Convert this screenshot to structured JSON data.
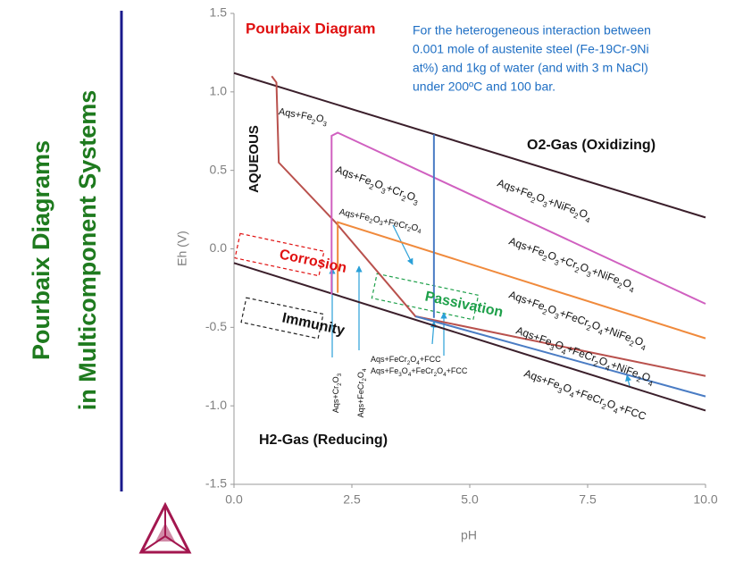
{
  "slide": {
    "title_lines": [
      "Pourbaix Diagrams",
      "in Multicomponent Systems"
    ]
  },
  "chart_data": {
    "type": "line",
    "title": "Pourbaix Diagram",
    "description": [
      "For the heterogeneous interaction between",
      "0.001 mole of  austenite steel (Fe-19Cr-9Ni",
      "at%) and 1kg of water (and with 3 m NaCl)",
      "under 200ºC and 100 bar."
    ],
    "x_label": "pH",
    "y_label": "Eh (V)",
    "xlim": [
      0,
      10
    ],
    "ylim": [
      -1.5,
      1.5
    ],
    "xticks": [
      {
        "value": 0,
        "label": "0.0"
      },
      2.5,
      {
        "value": 5,
        "label": "5.0"
      },
      7.5,
      {
        "value": 10,
        "label": "10.0"
      }
    ],
    "yticks": [
      1.5,
      {
        "value": 1,
        "label": "1.0"
      },
      0.5,
      {
        "value": 0,
        "label": "0.0"
      },
      -0.5,
      {
        "value": -1,
        "label": "-1.0"
      },
      -1.5
    ],
    "series": [
      {
        "color": "#3b1f2b",
        "x": [
          0,
          10
        ],
        "values": [
          1.12,
          0.2
        ]
      },
      {
        "color": "#3b1f2b",
        "x": [
          0,
          10
        ],
        "values": [
          -0.09,
          -1.03
        ]
      },
      {
        "color": "#b9514d",
        "x": [
          0.8,
          0.9,
          0.95,
          2.15,
          3.85,
          10
        ],
        "values": [
          1.1,
          1.06,
          0.55,
          0.17,
          -0.43,
          -0.81
        ]
      },
      {
        "color": "#d060c0",
        "x": [
          2.07,
          2.07,
          2.2,
          10
        ],
        "values": [
          -0.29,
          0.72,
          0.74,
          -0.35
        ]
      },
      {
        "color": "#f08a3c",
        "x": [
          2.2,
          2.2,
          10
        ],
        "values": [
          -0.28,
          0.17,
          -0.57
        ]
      },
      {
        "color": "#4a7cc4",
        "x": [
          4.24,
          4.24
        ],
        "values": [
          0.73,
          -0.44
        ]
      },
      {
        "color": "#4a7cc4",
        "x": [
          3.85,
          10
        ],
        "values": [
          -0.43,
          -0.94
        ]
      }
    ],
    "annotations": [
      "Aqs+Fe2O3",
      "AQUEOUS",
      "O2-Gas (Oxidizing)",
      "Aqs+Fe2O3+Cr2O3",
      "Aqs+Fe2O3+NiFe2O4",
      "Aqs+Fe2O3+FeCr2O4",
      "Aqs+Fe2O3+Cr2O3+NiFe2O4",
      "Aqs+Fe2O3+FeCr2O4+NiFe2O4",
      "Aqs+Fe3O4+FeCr2O4+NiFe2O4",
      "Aqs+Fe3O4+FeCr2O4+FCC",
      "Aqs+FeCr2O4+FCC",
      "Aqs+Fe3O4+FeCr2O4+FCC",
      "Aqs+Cr2O3",
      "Aqs+FeCr2O4",
      "H2-Gas (Reducing)",
      "Corrosion",
      "Passivation",
      "Immunity"
    ]
  }
}
